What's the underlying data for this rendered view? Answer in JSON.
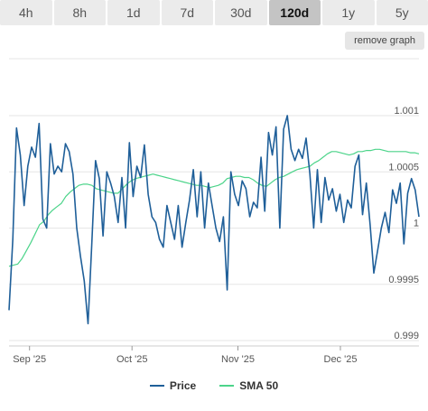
{
  "tabs": [
    {
      "label": "4h",
      "active": false
    },
    {
      "label": "8h",
      "active": false
    },
    {
      "label": "1d",
      "active": false
    },
    {
      "label": "7d",
      "active": false
    },
    {
      "label": "30d",
      "active": false
    },
    {
      "label": "120d",
      "active": true
    },
    {
      "label": "1y",
      "active": false
    },
    {
      "label": "5y",
      "active": false
    }
  ],
  "remove_graph_label": "remove graph",
  "colors": {
    "price": "#1f5f99",
    "sma": "#4cd48a",
    "grid": "#e6e6e6"
  },
  "chart_data": {
    "type": "line",
    "title": "",
    "xlabel": "",
    "ylabel": "",
    "x_range": [
      "2025-08-26",
      "2025-12-24"
    ],
    "ylim": [
      0.999,
      1.001
    ],
    "y_ticks": [
      0.999,
      0.9995,
      1,
      1.0005,
      1.001
    ],
    "y_tick_labels": [
      "0.999",
      "0.9995",
      "1",
      "1.0005",
      "1.001"
    ],
    "x_ticks": [
      {
        "date": "2025-09-01",
        "label": "Sep '25"
      },
      {
        "date": "2025-10-01",
        "label": "Oct '25"
      },
      {
        "date": "2025-11-01",
        "label": "Nov '25"
      },
      {
        "date": "2025-12-01",
        "label": "Dec '25"
      }
    ],
    "grid": true,
    "legend_position": "bottom-center",
    "series": [
      {
        "name": "Price",
        "x_start": "2025-08-26",
        "x_end": "2025-12-24",
        "values": [
          0.99927,
          0.9999,
          1.00089,
          1.00065,
          1.0002,
          1.00055,
          1.00072,
          1.00063,
          1.00093,
          1.00008,
          1.0,
          1.00075,
          1.00048,
          1.00055,
          1.0005,
          1.00075,
          1.00068,
          1.00048,
          1.0,
          0.99975,
          0.99953,
          0.99915,
          0.99985,
          1.0006,
          1.00044,
          0.99993,
          1.0005,
          1.0004,
          1.00028,
          1.00005,
          1.00045,
          1.0,
          1.00076,
          1.00028,
          1.00055,
          1.00045,
          1.00074,
          1.0003,
          1.0001,
          1.00005,
          0.9999,
          0.99983,
          1.0002,
          1.00005,
          0.9999,
          1.0002,
          0.99983,
          1.00005,
          1.00025,
          1.00052,
          1.0001,
          1.0005,
          1.0,
          1.0004,
          1.0002,
          1.0,
          0.99988,
          1.0001,
          0.99945,
          1.0005,
          1.0003,
          1.0002,
          1.00042,
          1.00035,
          1.0001,
          1.00023,
          1.00018,
          1.00063,
          1.00015,
          1.00085,
          1.00065,
          1.0009,
          1.0,
          1.00088,
          1.001,
          1.0007,
          1.0006,
          1.0007,
          1.00062,
          1.0008,
          1.00048,
          1.0,
          1.00052,
          1.00005,
          1.00045,
          1.00025,
          1.00035,
          1.00015,
          1.0003,
          1.00005,
          1.00025,
          1.00018,
          1.00055,
          1.00065,
          1.00012,
          1.0004,
          1.00003,
          0.9996,
          0.9998,
          1.0,
          1.00014,
          0.99996,
          1.00034,
          1.00022,
          1.0004,
          0.99986,
          1.00031,
          1.00044,
          1.00034,
          1.0001
        ]
      },
      {
        "name": "SMA 50",
        "x_start": "2025-08-26",
        "x_end": "2025-12-24",
        "values": [
          0.99966,
          0.99967,
          0.99968,
          0.99973,
          0.9998,
          0.99987,
          0.99995,
          1.00003,
          1.00006,
          1.00012,
          1.00016,
          1.00019,
          1.00022,
          1.00028,
          1.00032,
          1.00035,
          1.00038,
          1.00039,
          1.00039,
          1.00038,
          1.00035,
          1.00034,
          1.00033,
          1.00032,
          1.00031,
          1.00031,
          1.00035,
          1.00039,
          1.00042,
          1.00044,
          1.00045,
          1.00046,
          1.00047,
          1.00048,
          1.00047,
          1.00046,
          1.00045,
          1.00044,
          1.00043,
          1.00042,
          1.00041,
          1.0004,
          1.00039,
          1.00038,
          1.00038,
          1.00037,
          1.00036,
          1.00037,
          1.00038,
          1.0004,
          1.00044,
          1.00045,
          1.00046,
          1.00046,
          1.00045,
          1.00045,
          1.00043,
          1.0004,
          1.00038,
          1.00037,
          1.0004,
          1.00043,
          1.00045,
          1.00046,
          1.00048,
          1.0005,
          1.00052,
          1.00053,
          1.00054,
          1.00055,
          1.00058,
          1.0006,
          1.00063,
          1.00066,
          1.00068,
          1.00068,
          1.00067,
          1.00066,
          1.00065,
          1.00066,
          1.00068,
          1.00068,
          1.00069,
          1.00069,
          1.0007,
          1.0007,
          1.00069,
          1.00068,
          1.00068,
          1.00068,
          1.00068,
          1.00068,
          1.00067,
          1.00067,
          1.00066
        ]
      }
    ]
  }
}
